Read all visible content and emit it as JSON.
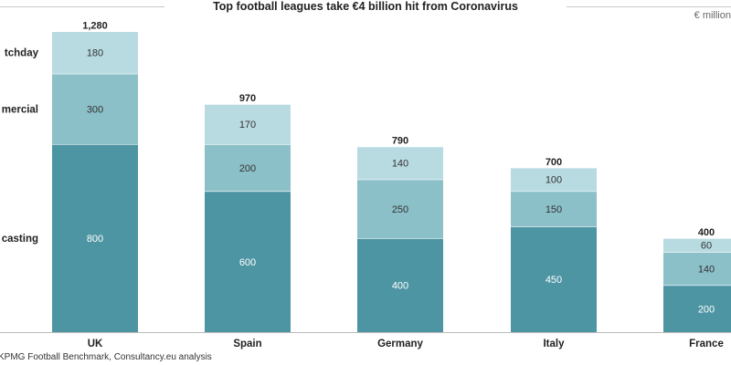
{
  "chart_data": {
    "type": "bar",
    "stacked": true,
    "title": "Top football leagues take €4 billion hit from Coronavirus",
    "unit": "€ million",
    "categories": [
      "UK",
      "Spain",
      "Germany",
      "Italy",
      "France"
    ],
    "series": [
      {
        "name": "Broadcasting",
        "label": "casting",
        "values": [
          800,
          600,
          400,
          450,
          200
        ],
        "color": "#4e95a3"
      },
      {
        "name": "Commercial",
        "label": "mercial",
        "values": [
          300,
          200,
          250,
          150,
          140
        ],
        "color": "#8cc0c9"
      },
      {
        "name": "Matchday",
        "label": "tchday",
        "values": [
          180,
          170,
          140,
          100,
          60
        ],
        "color": "#b8dbe1"
      }
    ],
    "totals": [
      "1,280",
      "970",
      "790",
      "700",
      "400"
    ],
    "source": "KPMG Football Benchmark, Consultancy.eu analysis"
  }
}
